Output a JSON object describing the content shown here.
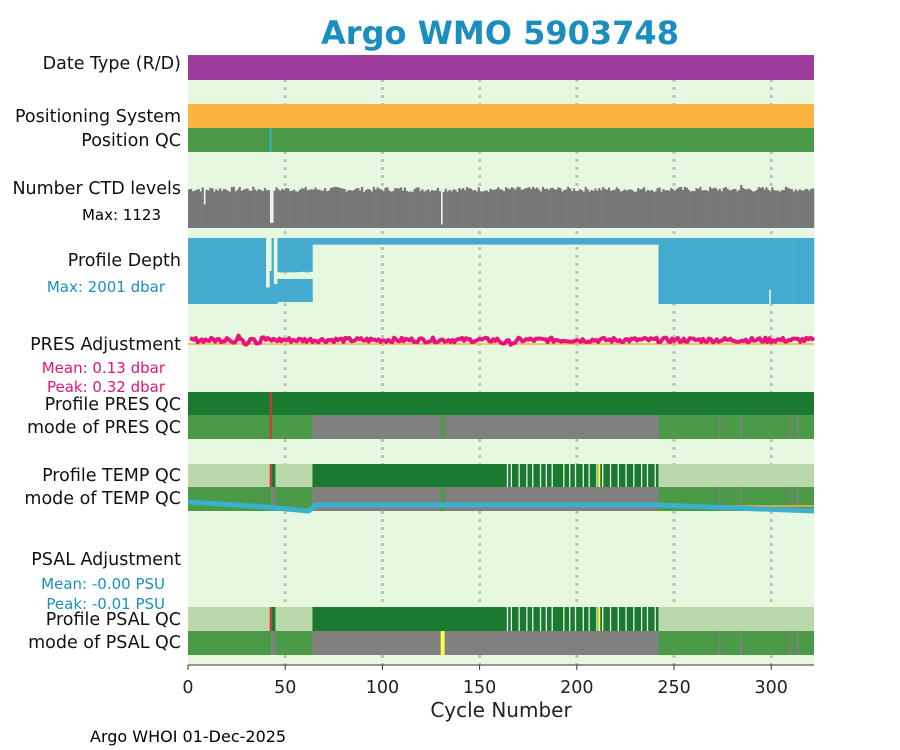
{
  "title": "Argo WMO 5903748",
  "footer": "Argo WHOI 01-Dec-2025",
  "colors": {
    "title": "#1a8fbf",
    "panel_bg": "#e6f8e0",
    "grid": "#c0c0c0",
    "purple": "#9c3d9b",
    "orange": "#fbb341",
    "qc_good": "#4a9a48",
    "qc_dark": "#1a7a30",
    "qc_light": "#bad9aa",
    "qc_gray": "#808080",
    "red": "#e03030",
    "yellow": "#ffff40",
    "ctd": "#777777",
    "depth": "#44aacf",
    "pres": "#e7147c",
    "psal": "#3ab0cf",
    "pres_text": "#e0147a",
    "psal_text": "#1890c0"
  },
  "chart_data": {
    "type": "bar",
    "xlabel": "Cycle Number",
    "xlim": [
      0,
      322
    ],
    "xticks": [
      "0",
      "50",
      "100",
      "150",
      "200",
      "250",
      "300"
    ],
    "xtick_values": [
      0,
      50,
      100,
      150,
      200,
      250,
      300
    ],
    "grid": "dotted vertical lines at x ticks",
    "rows": [
      {
        "label": "Date Type (R/D)",
        "segments": [
          {
            "from": 0,
            "to": 322,
            "color": "purple"
          }
        ]
      },
      {
        "label": "Positioning System",
        "segments": [
          {
            "from": 0,
            "to": 322,
            "color": "orange"
          }
        ]
      },
      {
        "label": "Position QC",
        "segments": [
          {
            "from": 0,
            "to": 322,
            "color": "qc_good"
          },
          {
            "from": 42,
            "to": 43,
            "color": "psal"
          }
        ]
      },
      {
        "label": "Number CTD levels",
        "annotation": "Max: 1123",
        "max": 1123
      },
      {
        "label": "Profile Depth",
        "annotation": "Max: 2001 dbar",
        "max": 2001,
        "unit": "dbar"
      },
      {
        "label": "PRES Adjustment",
        "annotations": [
          "Mean: 0.13 dbar",
          "Peak: 0.32 dbar"
        ],
        "mean": 0.13,
        "peak": 0.32
      },
      {
        "label": "Profile PRES QC",
        "segments": [
          {
            "from": 0,
            "to": 322,
            "color": "qc_dark"
          },
          {
            "from": 42,
            "to": 43,
            "color": "red"
          }
        ]
      },
      {
        "label": "mode of PRES QC",
        "segments": [
          {
            "from": 0,
            "to": 64,
            "color": "qc_good"
          },
          {
            "from": 42,
            "to": 43,
            "color": "red"
          },
          {
            "from": 64,
            "to": 242,
            "color": "qc_gray"
          },
          {
            "from": 130,
            "to": 132,
            "color": "qc_good"
          },
          {
            "from": 242,
            "to": 322,
            "color": "qc_good"
          },
          {
            "from": 273,
            "to": 274,
            "color": "qc_gray"
          },
          {
            "from": 284,
            "to": 285,
            "color": "qc_gray"
          },
          {
            "from": 309,
            "to": 310,
            "color": "qc_gray"
          },
          {
            "from": 313,
            "to": 314,
            "color": "qc_gray"
          }
        ]
      },
      {
        "label": "Profile TEMP QC",
        "segments": [
          {
            "from": 0,
            "to": 42,
            "color": "qc_light"
          },
          {
            "from": 42,
            "to": 43,
            "color": "red"
          },
          {
            "from": 43,
            "to": 45,
            "color": "qc_dark"
          },
          {
            "from": 45,
            "to": 64,
            "color": "qc_light"
          },
          {
            "from": 64,
            "to": 242,
            "color": "qc_dark"
          },
          {
            "from": 242,
            "to": 322,
            "color": "qc_light"
          }
        ]
      },
      {
        "label": "mode of TEMP QC",
        "segments": [
          {
            "from": 0,
            "to": 43,
            "color": "qc_good"
          },
          {
            "from": 43,
            "to": 45,
            "color": "qc_gray"
          },
          {
            "from": 45,
            "to": 64,
            "color": "qc_good"
          },
          {
            "from": 64,
            "to": 242,
            "color": "qc_gray"
          },
          {
            "from": 130,
            "to": 132,
            "color": "qc_good"
          },
          {
            "from": 242,
            "to": 322,
            "color": "qc_good"
          },
          {
            "from": 273,
            "to": 274,
            "color": "qc_gray"
          },
          {
            "from": 284,
            "to": 285,
            "color": "qc_gray"
          },
          {
            "from": 309,
            "to": 310,
            "color": "qc_gray"
          },
          {
            "from": 313,
            "to": 314,
            "color": "qc_gray"
          }
        ]
      },
      {
        "label": "PSAL Adjustment",
        "annotations": [
          "Mean: -0.00 PSU",
          "Peak: -0.01 PSU"
        ],
        "mean": -0.0,
        "peak": -0.01
      },
      {
        "label": "Profile PSAL QC",
        "segments": [
          {
            "from": 0,
            "to": 42,
            "color": "qc_light"
          },
          {
            "from": 42,
            "to": 43,
            "color": "red"
          },
          {
            "from": 43,
            "to": 45,
            "color": "qc_dark"
          },
          {
            "from": 45,
            "to": 64,
            "color": "qc_light"
          },
          {
            "from": 64,
            "to": 242,
            "color": "qc_dark"
          },
          {
            "from": 242,
            "to": 322,
            "color": "qc_light"
          }
        ]
      },
      {
        "label": "mode of PSAL QC",
        "segments": [
          {
            "from": 0,
            "to": 43,
            "color": "qc_good"
          },
          {
            "from": 43,
            "to": 45,
            "color": "qc_gray"
          },
          {
            "from": 45,
            "to": 64,
            "color": "qc_good"
          },
          {
            "from": 64,
            "to": 242,
            "color": "qc_gray"
          },
          {
            "from": 130,
            "to": 132,
            "color": "yellow"
          },
          {
            "from": 242,
            "to": 322,
            "color": "qc_good"
          },
          {
            "from": 273,
            "to": 274,
            "color": "qc_gray"
          },
          {
            "from": 284,
            "to": 285,
            "color": "qc_gray"
          },
          {
            "from": 309,
            "to": 310,
            "color": "qc_gray"
          },
          {
            "from": 313,
            "to": 314,
            "color": "qc_gray"
          }
        ]
      }
    ]
  }
}
